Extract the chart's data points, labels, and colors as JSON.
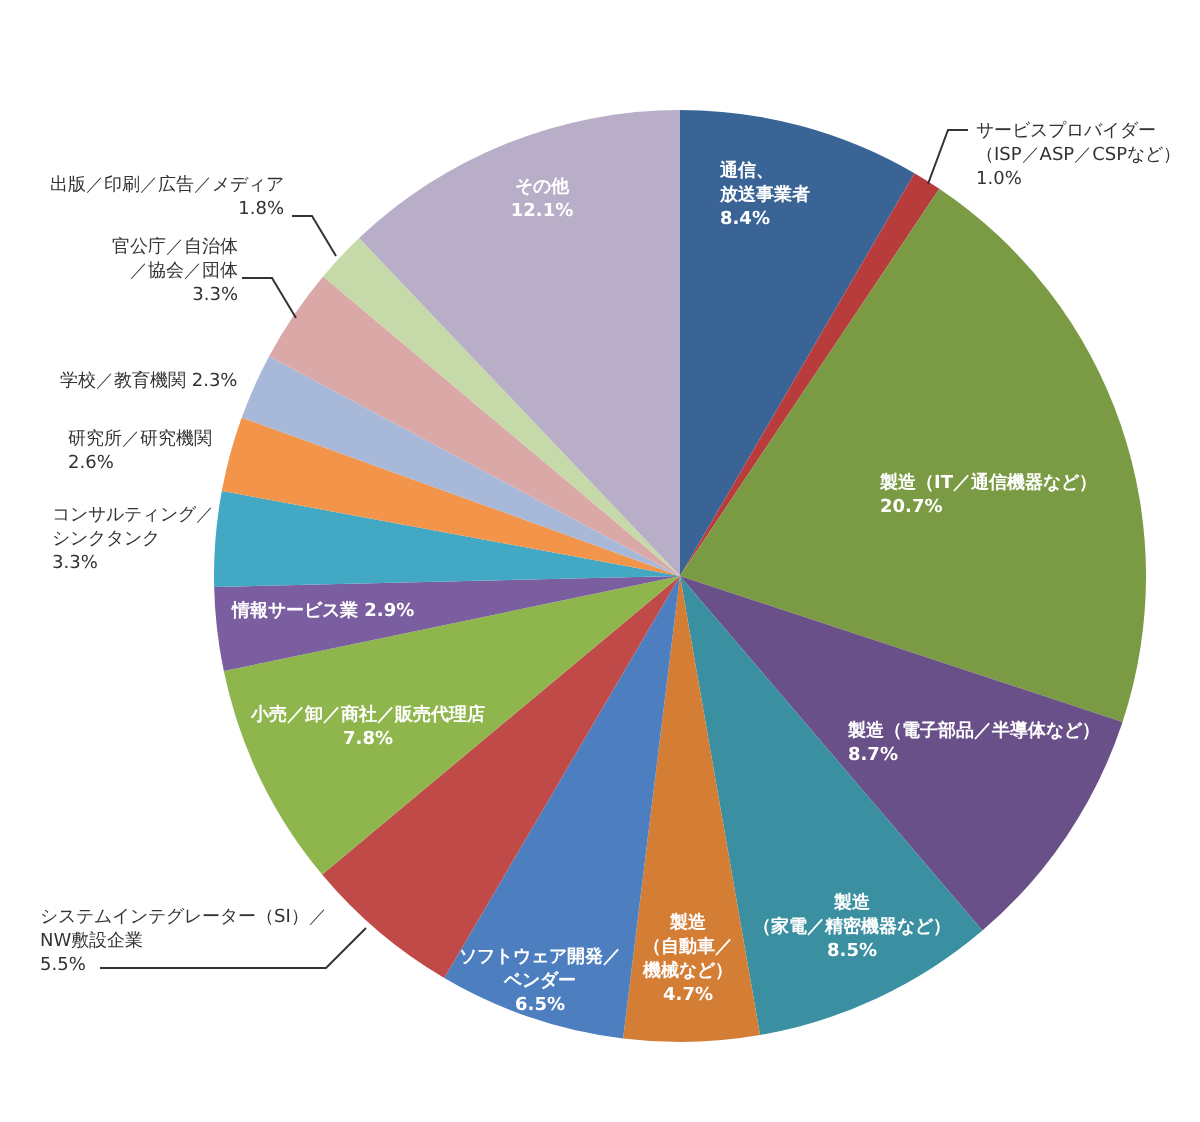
{
  "chart_data": {
    "type": "pie",
    "categories": [
      "通信、放送事業者",
      "サービスプロバイダー（ISP／ASP／CSPなど）",
      "製造（IT／通信機器など）",
      "製造（電子部品／半導体など）",
      "製造（家電／精密機器など）",
      "製造（自動車／機械など）",
      "ソフトウェア開発／ベンダー",
      "システムインテグレーター（SI）／NW敷設企業",
      "小売／卸／商社／販売代理店",
      "情報サービス業",
      "コンサルティング／シンクタンク",
      "研究所／研究機関",
      "学校／教育機関",
      "官公庁／自治体／協会／団体",
      "出版／印刷／広告／メディア",
      "その他"
    ],
    "values": [
      8.4,
      1.0,
      20.7,
      8.7,
      8.5,
      4.7,
      6.5,
      5.5,
      7.8,
      2.9,
      3.3,
      2.6,
      2.3,
      3.3,
      1.8,
      12.1
    ],
    "value_labels": [
      "8.4%",
      "1.0%",
      "20.7%",
      "8.7%",
      "8.5%",
      "4.7%",
      "6.5%",
      "5.5%",
      "7.8%",
      "2.9%",
      "3.3%",
      "2.6%",
      "2.3%",
      "3.3%",
      "1.8%",
      "12.1%"
    ],
    "colors": [
      "#3a6496",
      "#b83c3c",
      "#7a9a44",
      "#6a5088",
      "#3a8fa0",
      "#d47d35",
      "#4d7fc0",
      "#c04a48",
      "#8fb64c",
      "#7a5ea0",
      "#42a8c4",
      "#f2944a",
      "#a8b8d8",
      "#dba8a8",
      "#c6d9a8",
      "#b8aec8"
    ]
  }
}
